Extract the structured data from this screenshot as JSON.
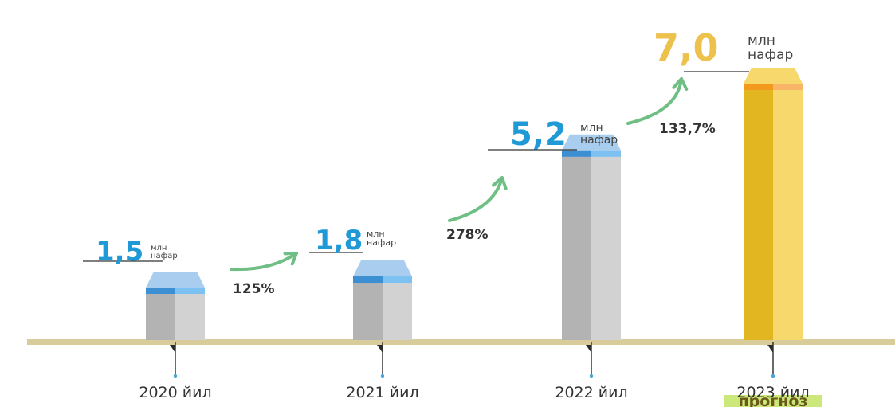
{
  "chart_data": {
    "type": "bar",
    "categories": [
      "2020 йил",
      "2021 йил",
      "2022 йил",
      "2023 йил"
    ],
    "values": [
      1.5,
      1.8,
      5.2,
      7.0
    ],
    "value_labels": [
      "1,5",
      "1,8",
      "5,2",
      "7,0"
    ],
    "unit_line1": "млн",
    "unit_line2": "нафар",
    "growth_labels": [
      "125%",
      "278%",
      "133,7%"
    ],
    "forecast_label": "прогноз",
    "forecast_category_index": 3,
    "ylim": [
      0,
      7.5
    ],
    "grid": false,
    "legend": "none",
    "colors": {
      "bar_left": "#b3b3b3",
      "bar_right": "#d2d2d2",
      "cap_light": "#a9cdee",
      "band_dark": "#3d8fd3",
      "band_light": "#7cc1f1",
      "value_blue": "#1f9ad6",
      "forecast_left": "#e2b621",
      "forecast_right": "#f7d86c",
      "forecast_band": "#f29a1e",
      "forecast_value": "#ecc24c",
      "arrow": "#6fbf84",
      "baseline": "#d7cc9a",
      "tick": "#2b2b2b",
      "forecast_highlight": "#cde87a"
    }
  }
}
